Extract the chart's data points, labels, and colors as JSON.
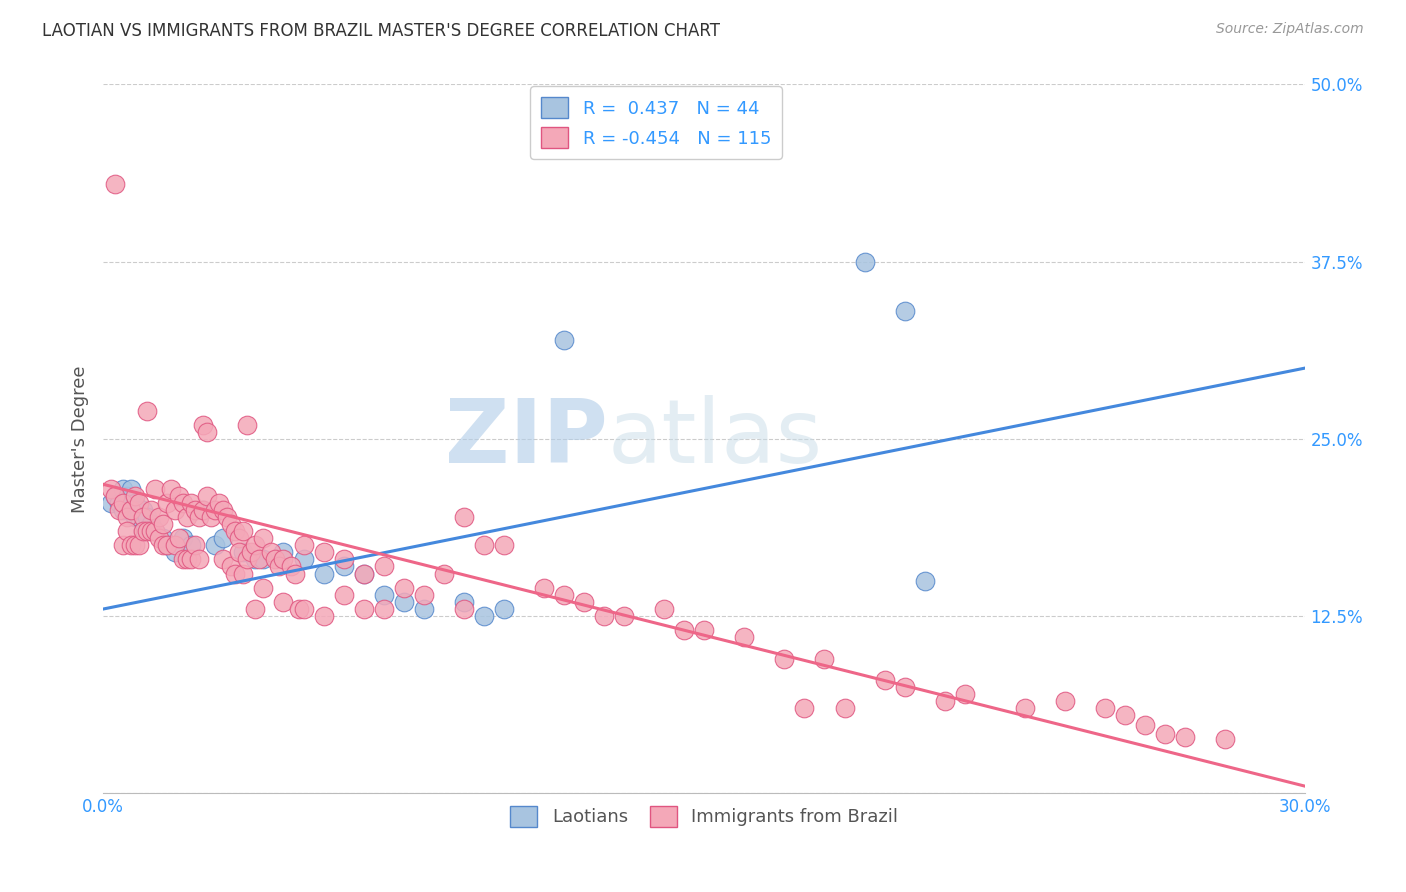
{
  "title": "LAOTIAN VS IMMIGRANTS FROM BRAZIL MASTER'S DEGREE CORRELATION CHART",
  "source": "Source: ZipAtlas.com",
  "ylabel": "Master's Degree",
  "xlim": [
    0.0,
    0.3
  ],
  "ylim": [
    0.0,
    0.5
  ],
  "xticks": [
    0.0,
    0.075,
    0.15,
    0.225,
    0.3
  ],
  "xtick_labels": [
    "0.0%",
    "",
    "",
    "",
    "30.0%"
  ],
  "yticks": [
    0.0,
    0.125,
    0.25,
    0.375,
    0.5
  ],
  "ytick_labels": [
    "",
    "12.5%",
    "25.0%",
    "37.5%",
    "50.0%"
  ],
  "blue_R": 0.437,
  "blue_N": 44,
  "pink_R": -0.454,
  "pink_N": 115,
  "blue_color": "#a8c4e0",
  "pink_color": "#f4a8b8",
  "blue_edge_color": "#5588cc",
  "pink_edge_color": "#e05580",
  "blue_line_color": "#4488dd",
  "pink_line_color": "#ee6688",
  "watermark_color": "#d8e8f0",
  "legend_blue_label": "Laotians",
  "legend_pink_label": "Immigrants from Brazil",
  "blue_scatter": [
    [
      0.002,
      0.205
    ],
    [
      0.003,
      0.21
    ],
    [
      0.004,
      0.205
    ],
    [
      0.005,
      0.215
    ],
    [
      0.005,
      0.2
    ],
    [
      0.006,
      0.205
    ],
    [
      0.006,
      0.21
    ],
    [
      0.007,
      0.2
    ],
    [
      0.007,
      0.215
    ],
    [
      0.008,
      0.205
    ],
    [
      0.008,
      0.195
    ],
    [
      0.009,
      0.2
    ],
    [
      0.009,
      0.195
    ],
    [
      0.01,
      0.2
    ],
    [
      0.01,
      0.185
    ],
    [
      0.011,
      0.195
    ],
    [
      0.012,
      0.19
    ],
    [
      0.013,
      0.185
    ],
    [
      0.015,
      0.18
    ],
    [
      0.016,
      0.175
    ],
    [
      0.018,
      0.17
    ],
    [
      0.02,
      0.18
    ],
    [
      0.022,
      0.175
    ],
    [
      0.025,
      0.2
    ],
    [
      0.028,
      0.175
    ],
    [
      0.03,
      0.18
    ],
    [
      0.035,
      0.17
    ],
    [
      0.038,
      0.165
    ],
    [
      0.04,
      0.165
    ],
    [
      0.045,
      0.17
    ],
    [
      0.05,
      0.165
    ],
    [
      0.055,
      0.155
    ],
    [
      0.06,
      0.16
    ],
    [
      0.065,
      0.155
    ],
    [
      0.07,
      0.14
    ],
    [
      0.075,
      0.135
    ],
    [
      0.08,
      0.13
    ],
    [
      0.09,
      0.135
    ],
    [
      0.095,
      0.125
    ],
    [
      0.1,
      0.13
    ],
    [
      0.115,
      0.32
    ],
    [
      0.19,
      0.375
    ],
    [
      0.2,
      0.34
    ],
    [
      0.205,
      0.15
    ]
  ],
  "pink_scatter": [
    [
      0.002,
      0.215
    ],
    [
      0.003,
      0.21
    ],
    [
      0.003,
      0.43
    ],
    [
      0.004,
      0.2
    ],
    [
      0.005,
      0.205
    ],
    [
      0.005,
      0.175
    ],
    [
      0.006,
      0.195
    ],
    [
      0.006,
      0.185
    ],
    [
      0.007,
      0.2
    ],
    [
      0.007,
      0.175
    ],
    [
      0.008,
      0.21
    ],
    [
      0.008,
      0.175
    ],
    [
      0.009,
      0.205
    ],
    [
      0.009,
      0.175
    ],
    [
      0.01,
      0.195
    ],
    [
      0.01,
      0.185
    ],
    [
      0.011,
      0.27
    ],
    [
      0.011,
      0.185
    ],
    [
      0.012,
      0.2
    ],
    [
      0.012,
      0.185
    ],
    [
      0.013,
      0.215
    ],
    [
      0.013,
      0.185
    ],
    [
      0.014,
      0.195
    ],
    [
      0.014,
      0.18
    ],
    [
      0.015,
      0.19
    ],
    [
      0.015,
      0.175
    ],
    [
      0.016,
      0.205
    ],
    [
      0.016,
      0.175
    ],
    [
      0.017,
      0.215
    ],
    [
      0.018,
      0.2
    ],
    [
      0.018,
      0.175
    ],
    [
      0.019,
      0.21
    ],
    [
      0.019,
      0.18
    ],
    [
      0.02,
      0.205
    ],
    [
      0.02,
      0.165
    ],
    [
      0.021,
      0.195
    ],
    [
      0.021,
      0.165
    ],
    [
      0.022,
      0.205
    ],
    [
      0.022,
      0.165
    ],
    [
      0.023,
      0.2
    ],
    [
      0.023,
      0.175
    ],
    [
      0.024,
      0.195
    ],
    [
      0.024,
      0.165
    ],
    [
      0.025,
      0.2
    ],
    [
      0.025,
      0.26
    ],
    [
      0.026,
      0.21
    ],
    [
      0.026,
      0.255
    ],
    [
      0.027,
      0.195
    ],
    [
      0.028,
      0.2
    ],
    [
      0.029,
      0.205
    ],
    [
      0.03,
      0.2
    ],
    [
      0.03,
      0.165
    ],
    [
      0.031,
      0.195
    ],
    [
      0.032,
      0.19
    ],
    [
      0.032,
      0.16
    ],
    [
      0.033,
      0.185
    ],
    [
      0.033,
      0.155
    ],
    [
      0.034,
      0.18
    ],
    [
      0.034,
      0.17
    ],
    [
      0.035,
      0.185
    ],
    [
      0.035,
      0.155
    ],
    [
      0.036,
      0.26
    ],
    [
      0.036,
      0.165
    ],
    [
      0.037,
      0.17
    ],
    [
      0.038,
      0.175
    ],
    [
      0.038,
      0.13
    ],
    [
      0.039,
      0.165
    ],
    [
      0.04,
      0.18
    ],
    [
      0.04,
      0.145
    ],
    [
      0.042,
      0.17
    ],
    [
      0.043,
      0.165
    ],
    [
      0.044,
      0.16
    ],
    [
      0.045,
      0.165
    ],
    [
      0.045,
      0.135
    ],
    [
      0.047,
      0.16
    ],
    [
      0.048,
      0.155
    ],
    [
      0.049,
      0.13
    ],
    [
      0.05,
      0.175
    ],
    [
      0.05,
      0.13
    ],
    [
      0.055,
      0.17
    ],
    [
      0.055,
      0.125
    ],
    [
      0.06,
      0.165
    ],
    [
      0.06,
      0.14
    ],
    [
      0.065,
      0.155
    ],
    [
      0.065,
      0.13
    ],
    [
      0.07,
      0.16
    ],
    [
      0.07,
      0.13
    ],
    [
      0.075,
      0.145
    ],
    [
      0.08,
      0.14
    ],
    [
      0.085,
      0.155
    ],
    [
      0.09,
      0.195
    ],
    [
      0.09,
      0.13
    ],
    [
      0.095,
      0.175
    ],
    [
      0.1,
      0.175
    ],
    [
      0.11,
      0.145
    ],
    [
      0.115,
      0.14
    ],
    [
      0.12,
      0.135
    ],
    [
      0.125,
      0.125
    ],
    [
      0.13,
      0.125
    ],
    [
      0.14,
      0.13
    ],
    [
      0.145,
      0.115
    ],
    [
      0.15,
      0.115
    ],
    [
      0.16,
      0.11
    ],
    [
      0.17,
      0.095
    ],
    [
      0.175,
      0.06
    ],
    [
      0.18,
      0.095
    ],
    [
      0.185,
      0.06
    ],
    [
      0.195,
      0.08
    ],
    [
      0.2,
      0.075
    ],
    [
      0.21,
      0.065
    ],
    [
      0.215,
      0.07
    ],
    [
      0.23,
      0.06
    ],
    [
      0.24,
      0.065
    ],
    [
      0.25,
      0.06
    ],
    [
      0.255,
      0.055
    ],
    [
      0.26,
      0.048
    ],
    [
      0.265,
      0.042
    ],
    [
      0.27,
      0.04
    ],
    [
      0.28,
      0.038
    ]
  ],
  "blue_line_x": [
    0.0,
    0.3
  ],
  "blue_line_y": [
    0.13,
    0.3
  ],
  "pink_line_x": [
    0.0,
    0.3
  ],
  "pink_line_y": [
    0.218,
    0.005
  ]
}
